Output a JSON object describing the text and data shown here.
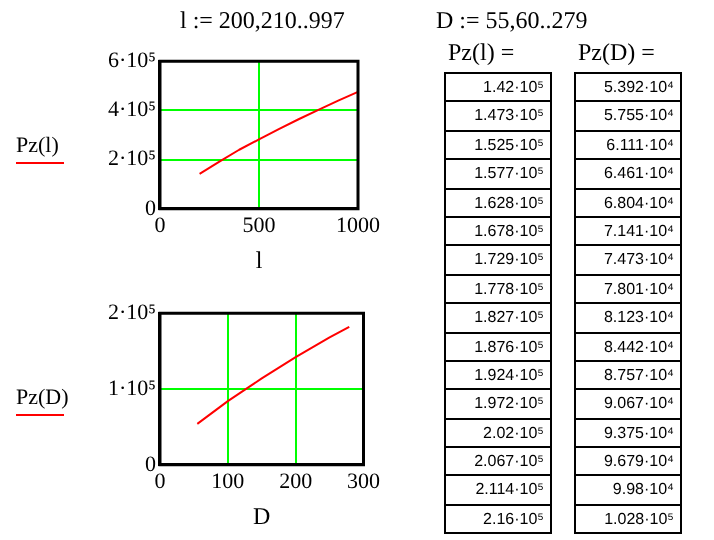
{
  "chart_data": [
    {
      "type": "line",
      "title": "l := 200,210..997",
      "xlabel": "l",
      "x": [
        200,
        300,
        400,
        500,
        600,
        700,
        800,
        900,
        997
      ],
      "series": [
        {
          "name": "Pz(l)",
          "color": "#ff0000",
          "values": [
            142000,
            192000,
            240000,
            282000,
            324000,
            364000,
            402000,
            440000,
            474000
          ]
        }
      ],
      "xlim": [
        0,
        1000
      ],
      "xticks": [
        0,
        500,
        1000
      ],
      "ylim": [
        0,
        600000
      ],
      "yticks": [
        0,
        {
          "value": 200000,
          "label": "2·10⁵"
        },
        {
          "value": 400000,
          "label": "4·10⁵"
        },
        {
          "value": 600000,
          "label": "6·10⁵"
        }
      ],
      "grid": true,
      "legend": "left",
      "marker": "none",
      "line_style": "solid"
    },
    {
      "type": "line",
      "xlabel": "D",
      "x": [
        55,
        100,
        150,
        200,
        250,
        279
      ],
      "series": [
        {
          "name": "Pz(D)",
          "color": "#ff0000",
          "values": [
            54000,
            84000,
            114000,
            142000,
            168000,
            182000
          ]
        }
      ],
      "xlim": [
        0,
        300
      ],
      "xticks": [
        0,
        100,
        200,
        300
      ],
      "ylim": [
        0,
        200000
      ],
      "yticks": [
        0,
        {
          "value": 100000,
          "label": "1·10⁵"
        },
        {
          "value": 200000,
          "label": "2·10⁵"
        }
      ],
      "grid": true,
      "legend": "left",
      "marker": "none",
      "line_style": "solid"
    },
    {
      "type": "other",
      "title": "D := 55,60..279",
      "subtitle": "Pz(l) =",
      "annotations": [
        "1.42·10⁵",
        "1.473·10⁵",
        "1.525·10⁵",
        "1.577·10⁵",
        "1.628·10⁵",
        "1.678·10⁵",
        "1.729·10⁵",
        "1.778·10⁵",
        "1.827·10⁵",
        "1.876·10⁵",
        "1.924·10⁵",
        "1.972·10⁵",
        "2.02·10⁵",
        "2.067·10⁵",
        "2.114·10⁵",
        "2.16·10⁵"
      ]
    },
    {
      "type": "other",
      "subtitle": "Pz(D) =",
      "annotations": [
        "5.392·10⁴",
        "5.755·10⁴",
        "6.111·10⁴",
        "6.461·10⁴",
        "6.804·10⁴",
        "7.141·10⁴",
        "7.473·10⁴",
        "7.801·10⁴",
        "8.123·10⁴",
        "8.442·10⁴",
        "8.757·10⁴",
        "9.067·10⁴",
        "9.375·10⁴",
        "9.679·10⁴",
        "9.98·10⁴",
        "1.028·10⁵"
      ]
    }
  ]
}
